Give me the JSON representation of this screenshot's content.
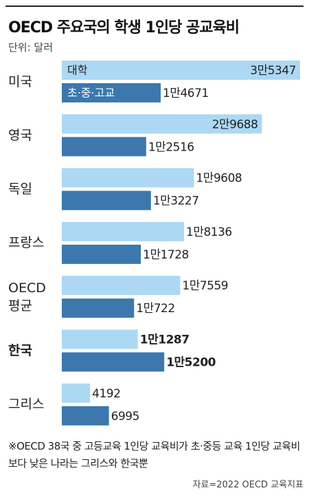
{
  "chart_data": {
    "type": "bar",
    "orientation": "horizontal",
    "title": "OECD 주요국의 학생 1인당 공교육비",
    "subtitle": "단위: 달러",
    "categories": [
      "미국",
      "영국",
      "독일",
      "프랑스",
      "OECD 평균",
      "한국",
      "그리스"
    ],
    "highlight_category": 5,
    "series": [
      {
        "name": "대학",
        "color": "#acd8f3",
        "values": [
          35347,
          29688,
          19608,
          18136,
          17559,
          11287,
          4192
        ],
        "value_labels": [
          "3만5347",
          "2만9688",
          "1만9608",
          "1만8136",
          "1만7559",
          "1만1287",
          "4192"
        ]
      },
      {
        "name": "초·중·고교",
        "color": "#3c78ad",
        "values": [
          14671,
          12516,
          13227,
          11728,
          10722,
          15200,
          6995
        ],
        "value_labels": [
          "1만4671",
          "1만2516",
          "1만3227",
          "1만1728",
          "1만722",
          "1만5200",
          "6995"
        ]
      }
    ],
    "note": "※OECD 38국 중 고등교육 1인당 교육비가 초·중등 교육 1인당 교육비보다 낮은 나라는 그리스와 한국뿐",
    "source": "자료=2022 OECD 교육지표"
  }
}
